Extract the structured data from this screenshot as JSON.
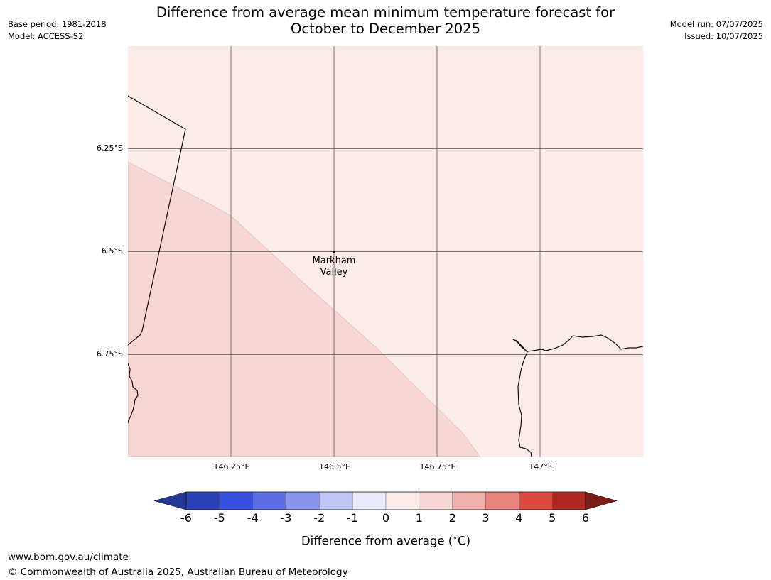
{
  "header": {
    "base_period": "Base period: 1981-2018",
    "model": "Model: ACCESS-S2",
    "title_line1": "Difference from average mean minimum temperature forecast for",
    "title_line2": "October to December 2025",
    "model_run": "Model run: 07/07/2025",
    "issued": "Issued: 10/07/2025"
  },
  "map": {
    "place_label_line1": "Markham",
    "place_label_line2": "Valley",
    "lat_labels": [
      "6.25°S",
      "6.5°S",
      "6.75°S"
    ],
    "lon_labels": [
      "146.25°E",
      "146.5°E",
      "146.75°E",
      "147°E"
    ],
    "anomaly_zones": [
      {
        "range": "0 to 1",
        "color": "#fbebe9"
      },
      {
        "range": "1 to 2",
        "color": "#f6d7d5"
      }
    ]
  },
  "colorbar": {
    "ticks": [
      "-6",
      "-5",
      "-4",
      "-3",
      "-2",
      "-1",
      "0",
      "1",
      "2",
      "3",
      "4",
      "5",
      "6"
    ],
    "colors": [
      "#263894",
      "#2b40b5",
      "#3450dc",
      "#5b6fe2",
      "#8796ec",
      "#bfc6f4",
      "#e9ebfb",
      "#fbebe9",
      "#f6d7d5",
      "#efb0ab",
      "#e8847d",
      "#db4a3e",
      "#ad2820",
      "#7c1e18"
    ],
    "label": "Difference from average ($^\\circ$C)",
    "label_text": "Difference from average (",
    "label_unit": "C)"
  },
  "footer": {
    "website": "www.bom.gov.au/climate",
    "copyright": "© Commonwealth of Australia 2025, Australian Bureau of Meteorology"
  }
}
